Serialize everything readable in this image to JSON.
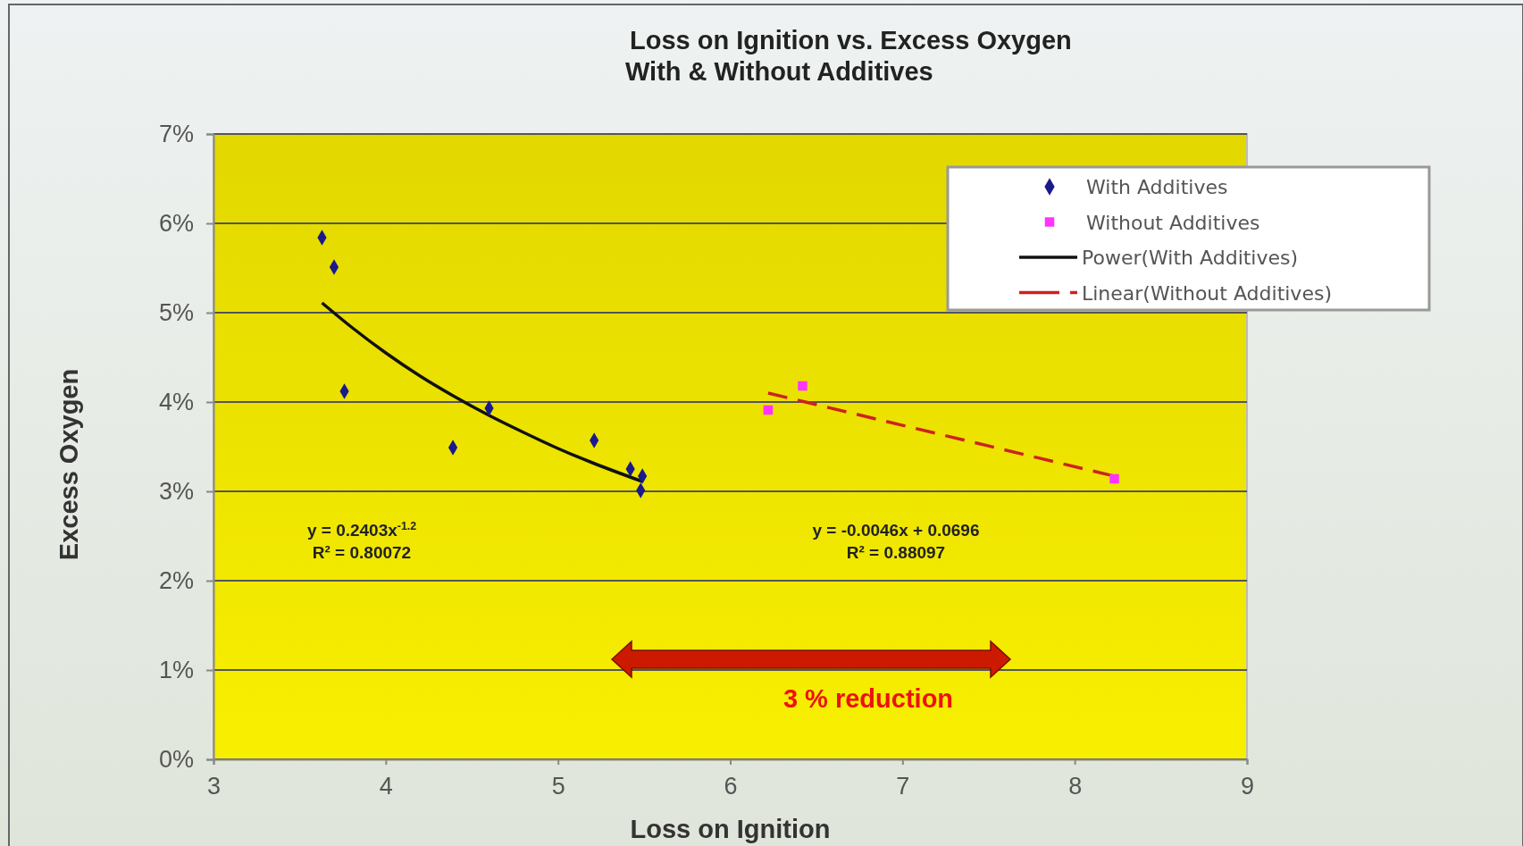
{
  "chart_data": {
    "type": "scatter",
    "title": "Loss on Ignition vs. Excess Oxygen",
    "subtitle": "With & Without Additives",
    "xlabel": "Loss on Ignition",
    "ylabel": "Excess Oxygen",
    "xlim": [
      3,
      9
    ],
    "xticks": [
      3,
      4,
      5,
      6,
      7,
      8,
      9
    ],
    "ylim": [
      0,
      0.07
    ],
    "yticks": [
      {
        "value": 0,
        "label": "0%"
      },
      {
        "value": 0.01,
        "label": "1%"
      },
      {
        "value": 0.02,
        "label": "2%"
      },
      {
        "value": 0.03,
        "label": "3%"
      },
      {
        "value": 0.04,
        "label": "4%"
      },
      {
        "value": 0.05,
        "label": "5%"
      },
      {
        "value": 0.06,
        "label": "6%"
      },
      {
        "value": 0.07,
        "label": "7%"
      }
    ],
    "grid": "y",
    "legend": "top right",
    "series": [
      {
        "name": "With Additives",
        "marker": "diamond",
        "color": "#1a1a8c",
        "x": [
          3.63,
          3.7,
          3.76,
          4.39,
          4.6,
          5.21,
          5.42,
          5.49,
          5.48
        ],
        "values": [
          0.0584,
          0.0551,
          0.0412,
          0.0349,
          0.0393,
          0.0357,
          0.0325,
          0.0317,
          0.0301
        ]
      },
      {
        "name": "Without Additives",
        "marker": "square",
        "color": "#ff33ff",
        "x": [
          6.22,
          6.42,
          8.23
        ],
        "values": [
          0.0391,
          0.0418,
          0.0314
        ]
      },
      {
        "name": "Power(With Additives)",
        "type": "line",
        "marker": "none",
        "line_style": "solid",
        "color": "#111111",
        "x": [
          3.63,
          3.8,
          4.0,
          4.2,
          4.4,
          4.6,
          4.8,
          5.0,
          5.2,
          5.49
        ],
        "values": [
          0.0511,
          0.0484,
          0.0455,
          0.0429,
          0.0406,
          0.0385,
          0.0366,
          0.0348,
          0.0332,
          0.0311
        ]
      },
      {
        "name": "Linear(Without Additives)",
        "type": "line",
        "marker": "none",
        "line_style": "dashed",
        "color": "#cc2222",
        "x": [
          6.22,
          8.23
        ],
        "values": [
          0.041,
          0.0317
        ]
      }
    ],
    "annotations": [
      "y = 0.2403x$^{-1.2}$",
      "R² = 0.80072",
      "y = -0.0046x + 0.0696",
      "R² = 0.88097",
      "3 % reduction"
    ]
  }
}
